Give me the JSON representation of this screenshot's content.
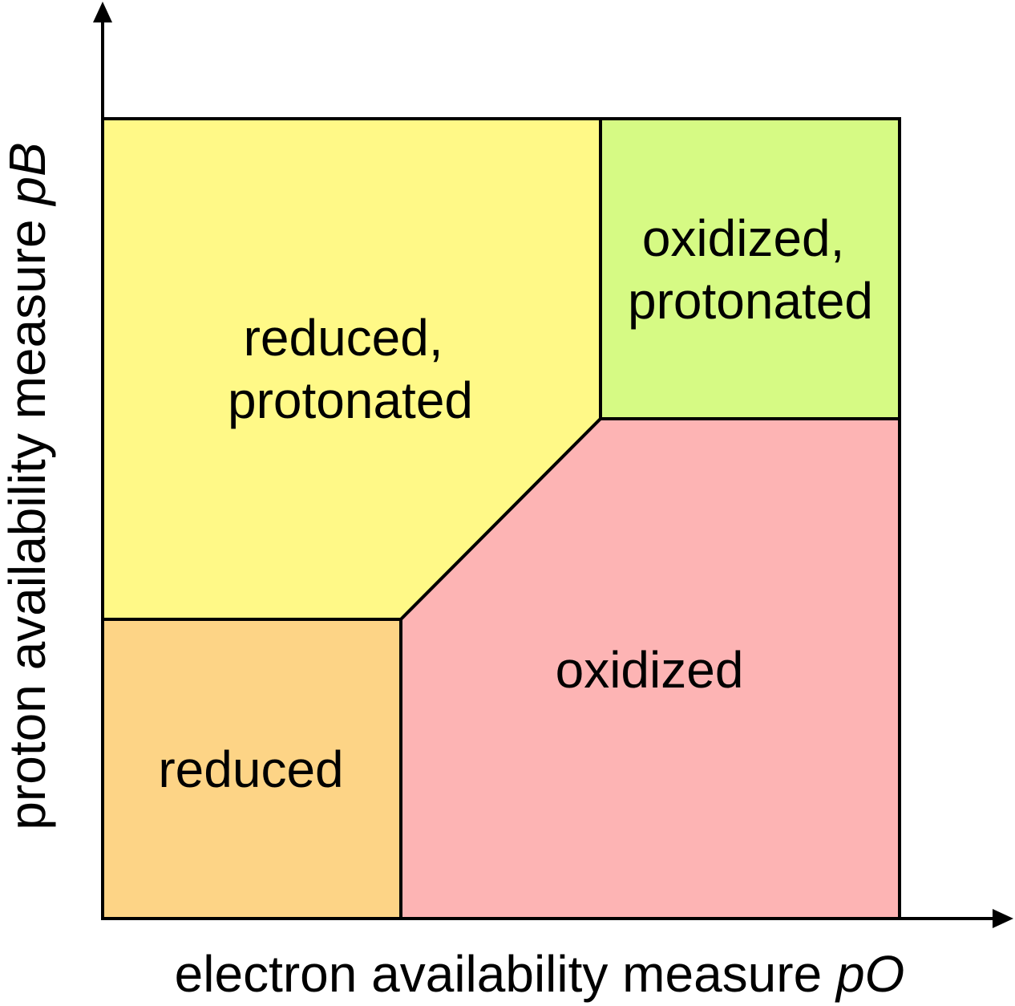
{
  "x_axis": {
    "label_text": "electron availability measure ",
    "label_var": "pO"
  },
  "y_axis": {
    "label_text": "proton availability measure ",
    "label_var": "pB"
  },
  "regions": {
    "reduced_protonated": {
      "line1": "reduced,",
      "line2": "protonated",
      "color": "#FFF987"
    },
    "oxidized_protonated": {
      "line1": "oxidized,",
      "line2": "protonated",
      "color": "#D6FA84"
    },
    "reduced": {
      "line1": "reduced",
      "color": "#FDD486"
    },
    "oxidized": {
      "line1": "oxidized",
      "color": "#FDB4B4"
    }
  },
  "colors": {
    "border": "#000000",
    "background": "#ffffff"
  }
}
